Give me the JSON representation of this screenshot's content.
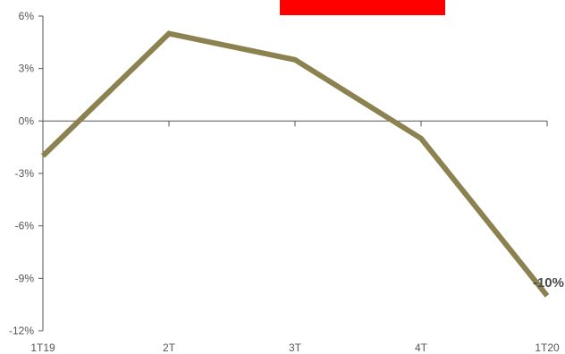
{
  "chart_data": {
    "type": "line",
    "categories": [
      "1T19",
      "2T",
      "3T",
      "4T",
      "1T20"
    ],
    "series": [
      {
        "values": [
          -2,
          5,
          3.5,
          -1,
          -10
        ],
        "color": "#8b8250"
      }
    ],
    "yticks": [
      6,
      3,
      0,
      -3,
      -6,
      -9,
      -12
    ],
    "ytick_labels": [
      "6%",
      "3%",
      "0%",
      "-3%",
      "-6%",
      "-9%",
      "-12%"
    ],
    "ylim": [
      -12,
      6
    ],
    "annotations": [
      {
        "category": "1T20",
        "value": -10,
        "text": "-10%"
      }
    ],
    "grid": false,
    "legend": "none",
    "title": "",
    "xlabel": "",
    "ylabel": ""
  },
  "header_box": {
    "color": "#ff0000"
  },
  "colors": {
    "axis": "#555555",
    "series": "#8b8250"
  }
}
